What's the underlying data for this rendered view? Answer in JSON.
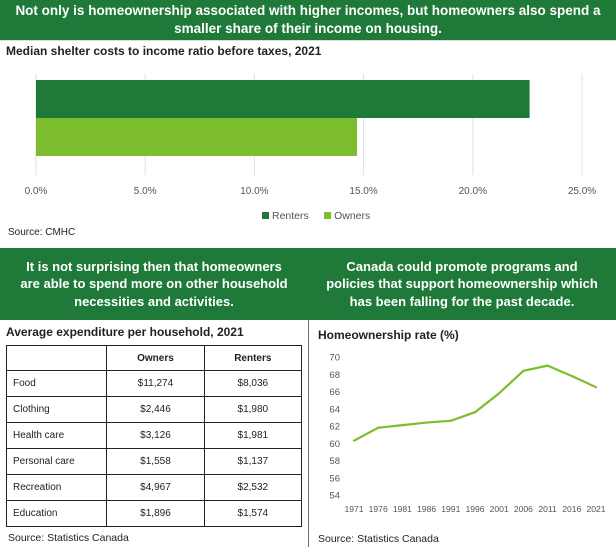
{
  "banners": {
    "top": "Not only is homeownership associated with higher incomes, but homeowners also spend a smaller share of their income on housing.",
    "left": "It is not surprising then that homeowners are able to spend more on other household necessities and activities.",
    "right": "Canada could promote programs and policies that support homeownership which has been falling for the past decade."
  },
  "colors": {
    "banner": "#1f7a3a",
    "renters": "#1f7a3a",
    "owners": "#7cbd2d"
  },
  "chart_data": [
    {
      "type": "bar",
      "orientation": "horizontal",
      "title": "Median shelter costs to income ratio before taxes, 2021",
      "categories": [
        ""
      ],
      "series": [
        {
          "name": "Renters",
          "values": [
            22.6
          ]
        },
        {
          "name": "Owners",
          "values": [
            14.7
          ]
        }
      ],
      "xlim": [
        0,
        25
      ],
      "xticks": [
        "0.0%",
        "5.0%",
        "10.0%",
        "15.0%",
        "20.0%",
        "25.0%"
      ],
      "legend": "bottom",
      "source": "Source: CMHC"
    },
    {
      "type": "table",
      "title": "Average expenditure per household, 2021",
      "columns": [
        "",
        "Owners",
        "Renters"
      ],
      "rows": [
        [
          "Food",
          "$11,274",
          "$8,036"
        ],
        [
          "Clothing",
          "$2,446",
          "$1,980"
        ],
        [
          "Health care",
          "$3,126",
          "$1,981"
        ],
        [
          "Personal care",
          "$1,558",
          "$1,137"
        ],
        [
          "Recreation",
          "$4,967",
          "$2,532"
        ],
        [
          "Education",
          "$1,896",
          "$1,574"
        ]
      ],
      "source": "Source: Statistics Canada"
    },
    {
      "type": "line",
      "title": "Homeownership rate (%)",
      "x": [
        "1971",
        "1976",
        "1981",
        "1986",
        "1991",
        "1996",
        "2001",
        "2006",
        "2011",
        "2016",
        "2021"
      ],
      "values": [
        60.3,
        61.8,
        62.1,
        62.4,
        62.6,
        63.6,
        65.8,
        68.4,
        69.0,
        67.8,
        66.5
      ],
      "ylim": [
        54,
        70
      ],
      "yticks": [
        "54",
        "56",
        "58",
        "60",
        "62",
        "64",
        "66",
        "68",
        "70"
      ],
      "source": "Source: Statistics Canada"
    }
  ]
}
